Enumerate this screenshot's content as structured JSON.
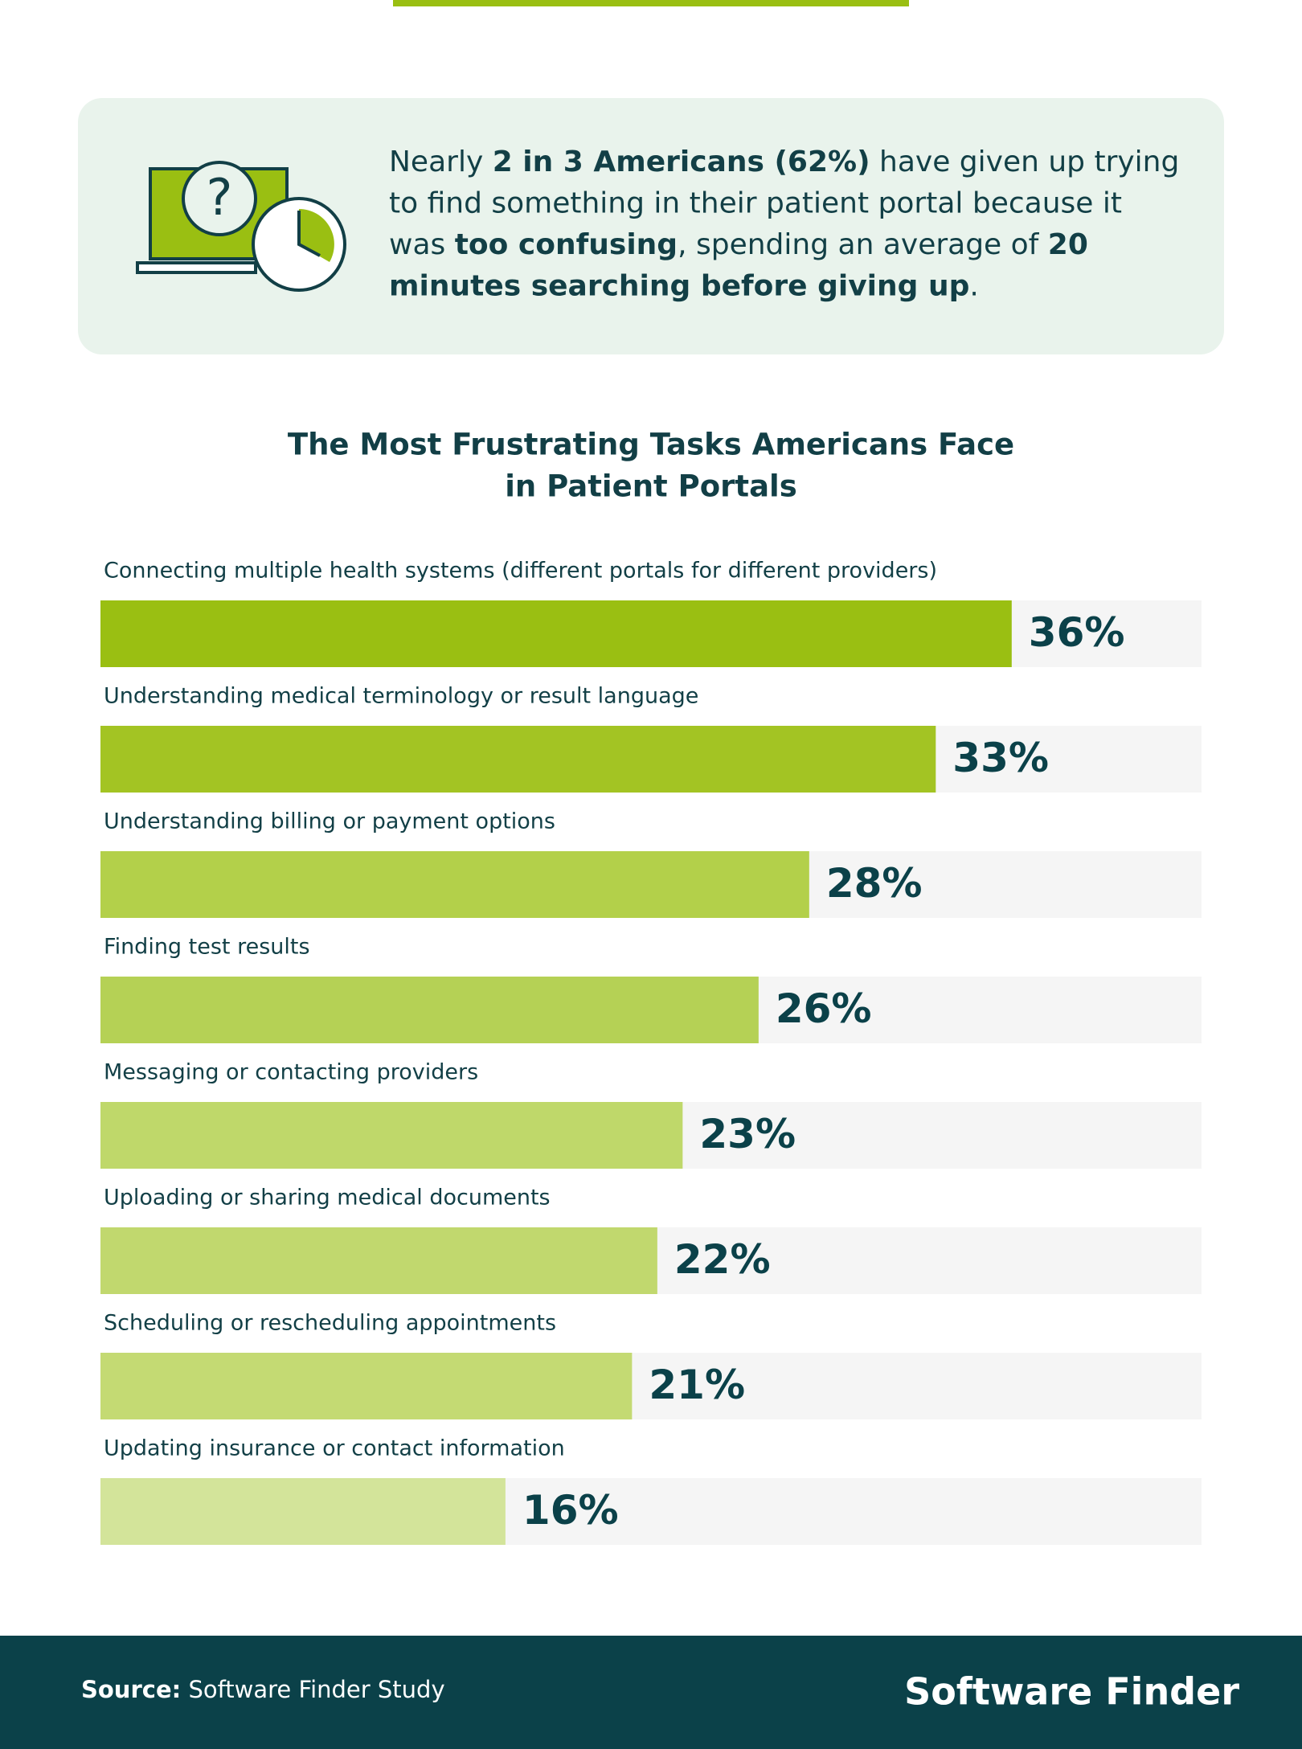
{
  "callout": {
    "lines": [
      [
        {
          "text": "Nearly ",
          "bold": false
        },
        {
          "text": "2 in 3 Americans (62%)",
          "bold": true
        },
        {
          "text": " have given up trying",
          "bold": false
        }
      ],
      [
        {
          "text": "to find something in their patient portal because it",
          "bold": false
        }
      ],
      [
        {
          "text": "was ",
          "bold": false
        },
        {
          "text": "too confusing",
          "bold": true
        },
        {
          "text": ", spending an average of ",
          "bold": false
        },
        {
          "text": "20",
          "bold": true
        }
      ],
      [
        {
          "text": "minutes searching before giving up",
          "bold": true
        },
        {
          "text": ".",
          "bold": false
        }
      ]
    ]
  },
  "chart_data": {
    "type": "bar",
    "orientation": "horizontal",
    "title": [
      "The Most Frustrating Tasks Americans Face",
      "in Patient Portals"
    ],
    "categories": [
      "Connecting multiple health systems (different portals for different providers)",
      "Understanding medical terminology or result language",
      "Understanding billing or payment options",
      "Finding test results",
      "Messaging or contacting providers",
      "Uploading or sharing medical documents",
      "Scheduling or rescheduling appointments",
      "Updating insurance or contact information"
    ],
    "values": [
      36,
      33,
      28,
      26,
      23,
      22,
      21,
      16
    ],
    "value_labels": [
      "36%",
      "33%",
      "28%",
      "26%",
      "23%",
      "22%",
      "21%",
      "16%"
    ],
    "colors": [
      "#9abf12",
      "#a3c423",
      "#b3d04a",
      "#b5d155",
      "#bfd86a",
      "#c1d86e",
      "#c4da73",
      "#d3e49a"
    ],
    "xlim": [
      0,
      43.5
    ]
  },
  "footer": {
    "source_label": "Source:",
    "source": "Software Finder Study",
    "brand": "Software Finder"
  }
}
